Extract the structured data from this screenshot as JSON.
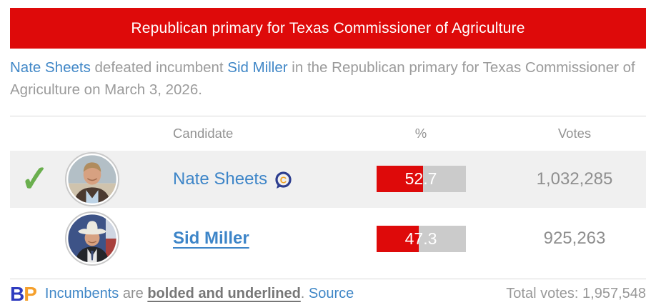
{
  "banner": {
    "title": "Republican primary for Texas Commissioner of Agriculture",
    "bg_color": "#de0a0a",
    "text_color": "#ffffff"
  },
  "summary": {
    "link1": "Nate Sheets",
    "seg1": " defeated incumbent ",
    "link2": "Sid Miller",
    "seg2": " in the Republican primary for Texas Commissioner of Agriculture on March 3, 2026."
  },
  "table": {
    "headers": {
      "candidate": "Candidate",
      "percent": "%",
      "votes": "Votes"
    },
    "rows": [
      {
        "name": "Nate Sheets",
        "winner": true,
        "incumbent": false,
        "candidate_connection": true,
        "percent": "52.7",
        "percent_value": 52.7,
        "votes": "1,032,285"
      },
      {
        "name": "Sid Miller",
        "winner": false,
        "incumbent": true,
        "candidate_connection": false,
        "percent": "47.3",
        "percent_value": 47.3,
        "votes": "925,263"
      }
    ]
  },
  "icons": {
    "checkmark": "✓",
    "candidate_connection_letter": "C",
    "bp_b": "B",
    "bp_p": "P"
  },
  "footer": {
    "incumbents_link": "Incumbents",
    "are_text": " are ",
    "bold_phrase": "bolded and underlined",
    "period": ". ",
    "source_link": "Source",
    "total_votes_label": "Total votes: ",
    "total_votes_value": "1,957,548"
  },
  "colors": {
    "banner_red": "#de0a0a",
    "bar_red": "#de0a0a",
    "bar_gray": "#cbcbcb",
    "link_blue": "#4087c7",
    "candidate_blue": "#3d85c8",
    "winner_green": "#6aaf4e",
    "row_shaded_bg": "#f0f0f0",
    "text_gray": "#9b9b9b",
    "bp_blue": "#2e3bbf",
    "bp_orange": "#f5a02d"
  }
}
